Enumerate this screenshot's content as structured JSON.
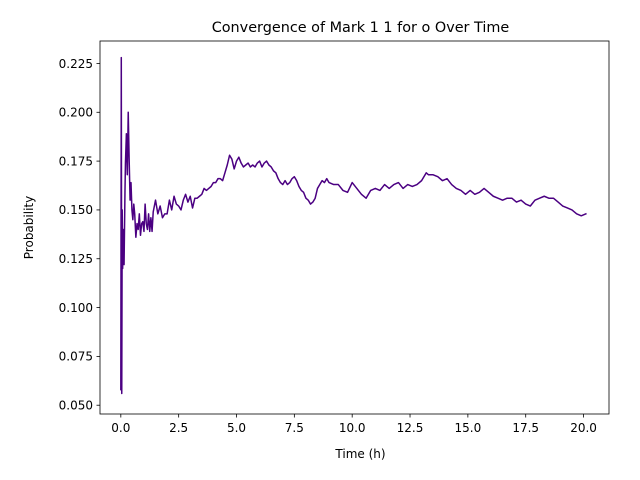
{
  "chart_data": {
    "type": "line",
    "title": "Convergence of Mark 1 1 for o Over Time",
    "xlabel": "Time (h)",
    "ylabel": "Probability",
    "xlim": [
      -0.9,
      21.1
    ],
    "ylim": [
      0.0455,
      0.2365
    ],
    "xticks": [
      "0.0",
      "2.5",
      "5.0",
      "7.5",
      "10.0",
      "12.5",
      "15.0",
      "17.5",
      "20.0"
    ],
    "xtick_values": [
      0,
      2.5,
      5,
      7.5,
      10,
      12.5,
      15,
      17.5,
      20
    ],
    "yticks": [
      "0.050",
      "0.075",
      "0.100",
      "0.125",
      "0.150",
      "0.175",
      "0.200",
      "0.225"
    ],
    "ytick_values": [
      0.05,
      0.075,
      0.1,
      0.125,
      0.15,
      0.175,
      0.2,
      0.225
    ],
    "grid": false,
    "legend": "none",
    "series": [
      {
        "color": "#4b0082",
        "x": [
          0,
          0.02,
          0.04,
          0.06,
          0.08,
          0.1,
          0.14,
          0.18,
          0.2,
          0.24,
          0.28,
          0.32,
          0.36,
          0.4,
          0.44,
          0.48,
          0.52,
          0.56,
          0.6,
          0.65,
          0.7,
          0.75,
          0.8,
          0.85,
          0.9,
          0.95,
          1.0,
          1.05,
          1.1,
          1.15,
          1.2,
          1.25,
          1.3,
          1.35,
          1.4,
          1.5,
          1.6,
          1.7,
          1.8,
          1.9,
          2.0,
          2.1,
          2.2,
          2.3,
          2.4,
          2.5,
          2.6,
          2.7,
          2.8,
          2.9,
          3.0,
          3.1,
          3.2,
          3.3,
          3.4,
          3.5,
          3.6,
          3.7,
          3.8,
          3.9,
          4.0,
          4.1,
          4.2,
          4.3,
          4.4,
          4.5,
          4.6,
          4.7,
          4.8,
          4.9,
          5.0,
          5.1,
          5.2,
          5.3,
          5.4,
          5.5,
          5.6,
          5.7,
          5.8,
          5.9,
          6.0,
          6.1,
          6.2,
          6.3,
          6.4,
          6.5,
          6.6,
          6.7,
          6.8,
          6.9,
          7.0,
          7.1,
          7.2,
          7.3,
          7.4,
          7.5,
          7.6,
          7.7,
          7.8,
          7.9,
          8.0,
          8.1,
          8.2,
          8.3,
          8.4,
          8.5,
          8.6,
          8.7,
          8.8,
          8.9,
          9.0,
          9.2,
          9.4,
          9.6,
          9.8,
          10.0,
          10.2,
          10.4,
          10.6,
          10.8,
          11.0,
          11.2,
          11.4,
          11.6,
          11.8,
          12.0,
          12.2,
          12.4,
          12.6,
          12.8,
          13.0,
          13.2,
          13.3,
          13.5,
          13.7,
          13.9,
          14.1,
          14.3,
          14.5,
          14.7,
          14.9,
          15.1,
          15.3,
          15.5,
          15.7,
          15.9,
          16.1,
          16.3,
          16.5,
          16.7,
          16.9,
          17.1,
          17.3,
          17.5,
          17.7,
          17.9,
          18.1,
          18.3,
          18.5,
          18.7,
          18.9,
          19.1,
          19.3,
          19.5,
          19.7,
          19.9,
          20.1
        ],
        "y": [
          0.058,
          0.228,
          0.056,
          0.15,
          0.12,
          0.14,
          0.122,
          0.16,
          0.174,
          0.189,
          0.168,
          0.2,
          0.176,
          0.155,
          0.164,
          0.15,
          0.145,
          0.153,
          0.148,
          0.136,
          0.143,
          0.14,
          0.148,
          0.137,
          0.143,
          0.144,
          0.139,
          0.153,
          0.143,
          0.14,
          0.148,
          0.139,
          0.146,
          0.139,
          0.149,
          0.155,
          0.148,
          0.152,
          0.146,
          0.148,
          0.148,
          0.155,
          0.15,
          0.157,
          0.153,
          0.152,
          0.15,
          0.155,
          0.158,
          0.154,
          0.157,
          0.151,
          0.156,
          0.156,
          0.157,
          0.158,
          0.161,
          0.16,
          0.161,
          0.162,
          0.164,
          0.164,
          0.166,
          0.166,
          0.165,
          0.169,
          0.173,
          0.178,
          0.176,
          0.171,
          0.175,
          0.177,
          0.174,
          0.172,
          0.173,
          0.174,
          0.172,
          0.173,
          0.172,
          0.174,
          0.175,
          0.172,
          0.174,
          0.175,
          0.173,
          0.172,
          0.17,
          0.169,
          0.166,
          0.164,
          0.163,
          0.165,
          0.163,
          0.164,
          0.166,
          0.167,
          0.165,
          0.162,
          0.16,
          0.159,
          0.156,
          0.155,
          0.153,
          0.154,
          0.156,
          0.161,
          0.163,
          0.165,
          0.164,
          0.166,
          0.164,
          0.163,
          0.163,
          0.16,
          0.159,
          0.164,
          0.161,
          0.158,
          0.156,
          0.16,
          0.161,
          0.16,
          0.163,
          0.161,
          0.163,
          0.164,
          0.161,
          0.163,
          0.162,
          0.163,
          0.165,
          0.169,
          0.168,
          0.168,
          0.167,
          0.165,
          0.166,
          0.163,
          0.161,
          0.16,
          0.158,
          0.16,
          0.158,
          0.159,
          0.161,
          0.159,
          0.157,
          0.156,
          0.155,
          0.156,
          0.156,
          0.154,
          0.155,
          0.153,
          0.152,
          0.155,
          0.156,
          0.157,
          0.156,
          0.156,
          0.154,
          0.152,
          0.151,
          0.15,
          0.148,
          0.147,
          0.148
        ]
      }
    ]
  }
}
